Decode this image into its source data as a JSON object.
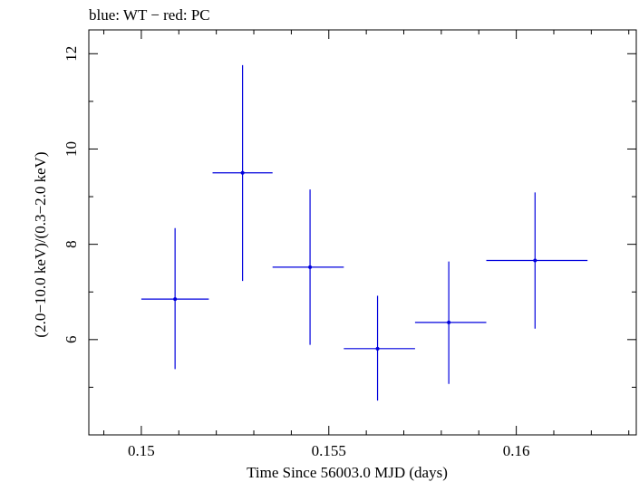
{
  "chart_data": {
    "type": "scatter",
    "title": "blue: WT − red: PC",
    "xlabel": "Time Since 56003.0 MJD (days)",
    "ylabel": "(2.0−10.0 keV)/(0.3−2.0 keV)",
    "xlim": [
      0.1486,
      0.1632
    ],
    "ylim": [
      4.0,
      12.5
    ],
    "x_ticks": [
      {
        "value": 0.15,
        "label": "0.15"
      },
      {
        "value": 0.155,
        "label": "0.155"
      },
      {
        "value": 0.16,
        "label": "0.16"
      }
    ],
    "y_ticks": [
      {
        "value": 6,
        "label": "6"
      },
      {
        "value": 8,
        "label": "8"
      },
      {
        "value": 10,
        "label": "10"
      },
      {
        "value": 12,
        "label": "12"
      }
    ],
    "grid": false,
    "series": [
      {
        "color": "#0000dd",
        "points": [
          {
            "x": 0.1509,
            "xlo": 0.15,
            "xhi": 0.1518,
            "y": 6.85,
            "ylo": 5.38,
            "yhi": 8.34
          },
          {
            "x": 0.1527,
            "xlo": 0.1519,
            "xhi": 0.1535,
            "y": 9.5,
            "ylo": 7.23,
            "yhi": 11.76
          },
          {
            "x": 0.1545,
            "xlo": 0.1535,
            "xhi": 0.1554,
            "y": 7.52,
            "ylo": 5.89,
            "yhi": 9.15
          },
          {
            "x": 0.1563,
            "xlo": 0.1554,
            "xhi": 0.1573,
            "y": 5.81,
            "ylo": 4.72,
            "yhi": 6.92
          },
          {
            "x": 0.1582,
            "xlo": 0.1573,
            "xhi": 0.1592,
            "y": 6.36,
            "ylo": 5.07,
            "yhi": 7.64
          },
          {
            "x": 0.1605,
            "xlo": 0.1592,
            "xhi": 0.1619,
            "y": 7.66,
            "ylo": 6.23,
            "yhi": 9.09
          }
        ]
      }
    ]
  }
}
